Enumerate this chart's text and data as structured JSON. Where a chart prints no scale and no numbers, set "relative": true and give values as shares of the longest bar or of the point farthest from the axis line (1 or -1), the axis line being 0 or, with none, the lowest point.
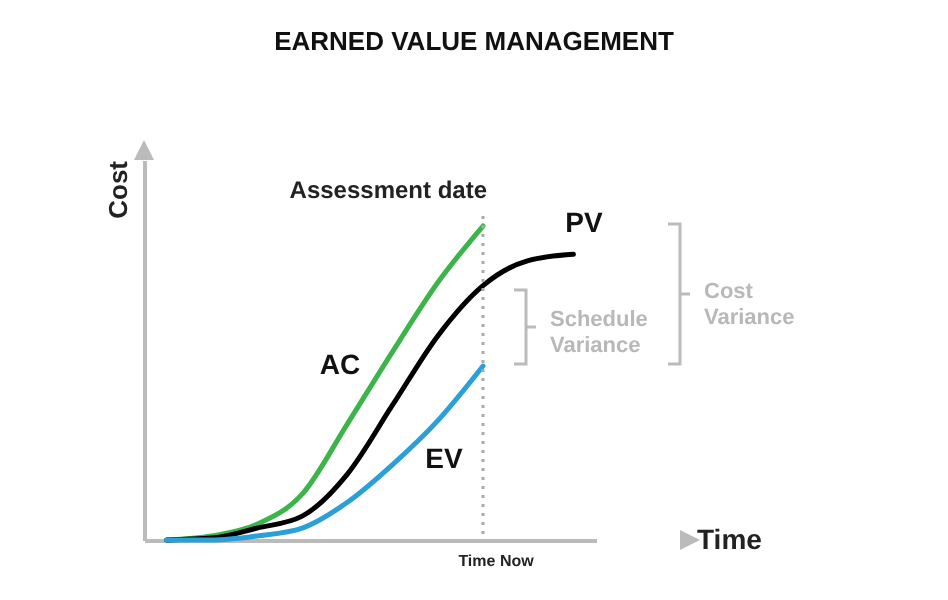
{
  "chart_data": {
    "type": "line",
    "title": "EARNED VALUE MANAGEMENT",
    "xlabel": "Time",
    "ylabel": "Cost",
    "relative": true,
    "categories": [
      null,
      null,
      null,
      null,
      null,
      null,
      null,
      null,
      null,
      null
    ],
    "series": [
      {
        "name": "AC",
        "color": "#3cb44a",
        "values": [
          0,
          0.013,
          0.05,
          0.146,
          0.37,
          0.6,
          0.82,
          1.0,
          null,
          null
        ]
      },
      {
        "name": "PV",
        "color": "#000000",
        "values": [
          0,
          0.006,
          0.038,
          0.076,
          0.21,
          0.43,
          0.65,
          0.81,
          0.89,
          0.91
        ]
      },
      {
        "name": "EV",
        "color": "#2a9fd8",
        "values": [
          0,
          0,
          0.013,
          0.038,
          0.12,
          0.24,
          0.38,
          0.554,
          null,
          null
        ]
      }
    ],
    "ref_lines": [
      {
        "axis": "x",
        "label": "Assessment date",
        "color": "#aaaaaa",
        "line_style": "dotted"
      }
    ],
    "annotations": [
      "Schedule Variance",
      "Cost Variance",
      "Time Now"
    ],
    "grid": false,
    "legend": false,
    "marker": "none",
    "line_style": "solid"
  }
}
